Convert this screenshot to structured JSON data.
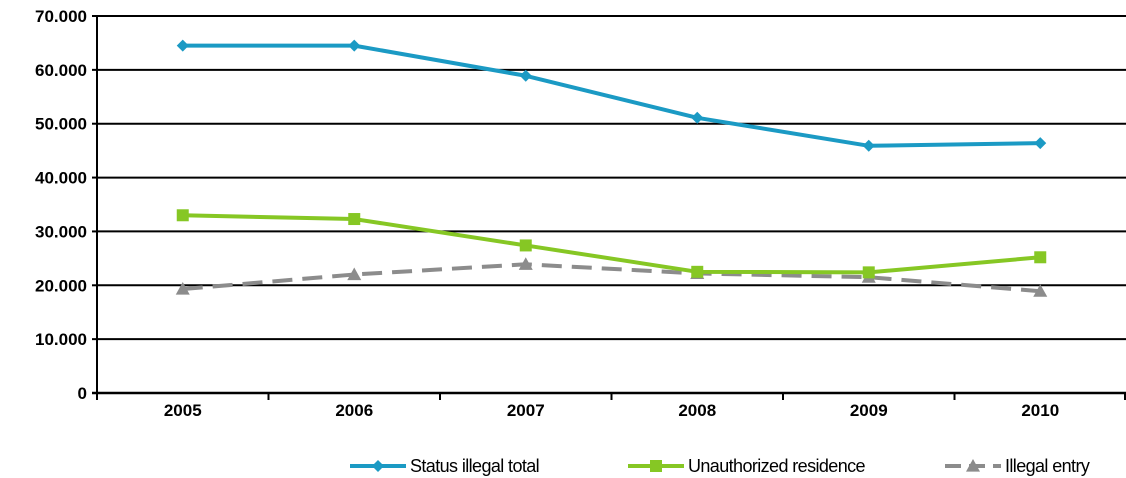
{
  "chart_data": {
    "type": "line",
    "categories": [
      "2005",
      "2006",
      "2007",
      "2008",
      "2009",
      "2010"
    ],
    "series": [
      {
        "name": "Status illegal total",
        "values": [
          64500,
          64500,
          58900,
          51100,
          45900,
          46400
        ],
        "color": "#1B9AC4",
        "marker": "diamond",
        "dash": "solid"
      },
      {
        "name": "Unauthorized residence",
        "values": [
          33000,
          32300,
          27400,
          22500,
          22400,
          25200
        ],
        "color": "#86C724",
        "marker": "square",
        "dash": "solid"
      },
      {
        "name": "Illegal entry",
        "values": [
          19300,
          22000,
          23900,
          22200,
          21500,
          18900
        ],
        "color": "#8C8C8C",
        "marker": "triangle",
        "dash": "dashed"
      }
    ],
    "yticks": [
      "0",
      "10.000",
      "20.000",
      "30.000",
      "40.000",
      "50.000",
      "60.000",
      "70.000"
    ],
    "ylim": [
      0,
      70000
    ],
    "grid": true,
    "legend_position": "bottom"
  }
}
